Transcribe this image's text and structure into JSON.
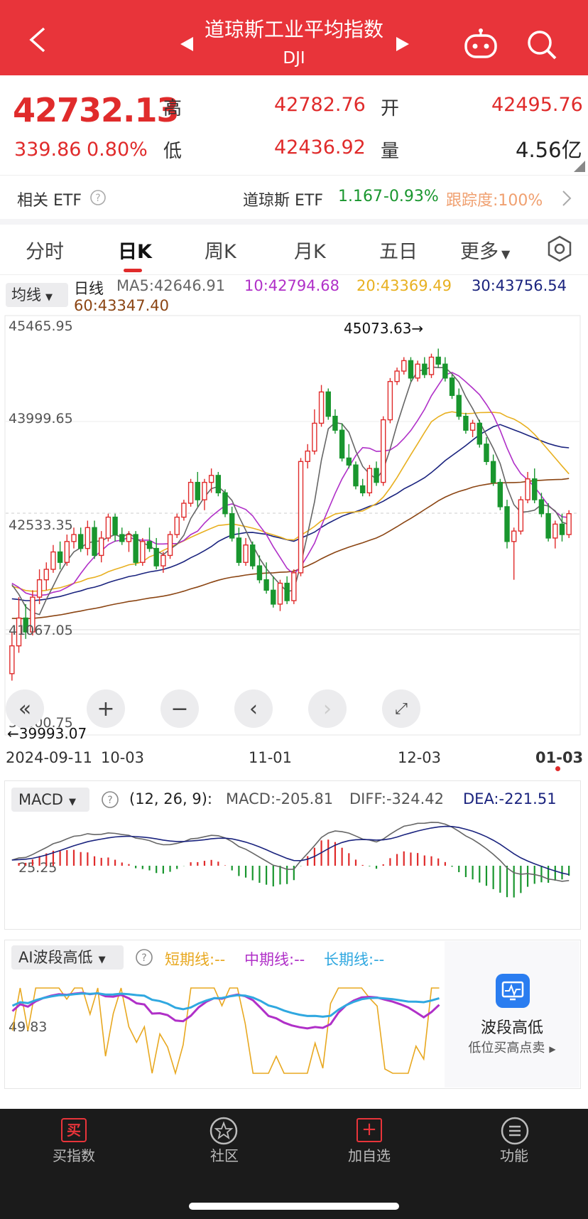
{
  "header": {
    "title": "道琼斯工业平均指数",
    "code": "DJI"
  },
  "quote": {
    "price": "42732.13",
    "change": "339.86",
    "change_pct": "0.80%",
    "high_label": "高",
    "high": "42782.76",
    "open_label": "开",
    "open": "42495.76",
    "low_label": "低",
    "low": "42436.92",
    "volume_label": "量",
    "volume": "4.56亿"
  },
  "etf": {
    "related_label": "相关 ETF",
    "name": "道琼斯 ETF",
    "price": "1.167",
    "change_pct": "-0.93%",
    "tracking": "跟踪度:100%"
  },
  "tabs": [
    "分时",
    "日K",
    "周K",
    "月K",
    "五日",
    "更多"
  ],
  "selected_tab": "日K",
  "ma_legend": {
    "selector": "均线",
    "kind": "日线",
    "ma5": "MA5:42646.91",
    "ma10": "10:42794.68",
    "ma20": "20:43369.49",
    "ma30": "30:43756.54",
    "ma60": "60:43347.40"
  },
  "colors": {
    "up": "#e02b2b",
    "down": "#19962e",
    "ma5": "#666666",
    "ma10": "#b030c8",
    "ma20": "#e8b020",
    "ma30": "#1a237e",
    "ma60": "#8b4513"
  },
  "chart_data": [
    {
      "type": "candlestick",
      "y_ticks": [
        "45465.95",
        "43999.65",
        "42533.35",
        "41067.05",
        "39600.75"
      ],
      "ylim": [
        39600.75,
        45465.95
      ],
      "x_ticks": [
        "2024-09-11",
        "10-03",
        "11-01",
        "12-03",
        "01-03"
      ],
      "annotations": {
        "max": "45073.63→",
        "min": "←39993.07"
      },
      "candles": [
        [
          40400,
          41000,
          40300,
          40800
        ],
        [
          40800,
          41500,
          40700,
          41200
        ],
        [
          41200,
          41400,
          40900,
          41000
        ],
        [
          41000,
          41600,
          40950,
          41500
        ],
        [
          41500,
          41900,
          41400,
          41750
        ],
        [
          41750,
          42000,
          41600,
          41900
        ],
        [
          41900,
          42250,
          41850,
          42150
        ],
        [
          42150,
          42300,
          41900,
          42000
        ],
        [
          42000,
          42400,
          41950,
          42300
        ],
        [
          42300,
          42500,
          42200,
          42400
        ],
        [
          42400,
          42500,
          42150,
          42200
        ],
        [
          42200,
          42600,
          42100,
          42500
        ],
        [
          42500,
          42600,
          42050,
          42100
        ],
        [
          42100,
          42450,
          42000,
          42350
        ],
        [
          42350,
          42700,
          42300,
          42650
        ],
        [
          42650,
          42700,
          42300,
          42400
        ],
        [
          42400,
          42500,
          42250,
          42300
        ],
        [
          42300,
          42450,
          42150,
          42400
        ],
        [
          42400,
          42450,
          41950,
          42000
        ],
        [
          42000,
          42350,
          41950,
          42300
        ],
        [
          42300,
          42500,
          42150,
          42200
        ],
        [
          42200,
          42350,
          41900,
          41950
        ],
        [
          41950,
          42150,
          41850,
          42100
        ],
        [
          42100,
          42450,
          42050,
          42400
        ],
        [
          42400,
          42700,
          42350,
          42650
        ],
        [
          42650,
          42900,
          42600,
          42850
        ],
        [
          42850,
          43200,
          42800,
          43150
        ],
        [
          43150,
          43300,
          42800,
          42900
        ],
        [
          42900,
          43200,
          42750,
          43150
        ],
        [
          43150,
          43350,
          43000,
          43250
        ],
        [
          43250,
          43300,
          42950,
          43000
        ],
        [
          43000,
          43050,
          42650,
          42700
        ],
        [
          42700,
          42800,
          42300,
          42350
        ],
        [
          42350,
          42500,
          41950,
          42000
        ],
        [
          42000,
          42350,
          41950,
          42250
        ],
        [
          42250,
          42300,
          41900,
          41950
        ],
        [
          41950,
          42100,
          41700,
          41750
        ],
        [
          41750,
          42000,
          41550,
          41600
        ],
        [
          41600,
          41800,
          41350,
          41400
        ],
        [
          41400,
          41750,
          41300,
          41700
        ],
        [
          41700,
          41800,
          41400,
          41450
        ],
        [
          41450,
          41900,
          41400,
          41850
        ],
        [
          41850,
          43500,
          41800,
          43450
        ],
        [
          43450,
          43700,
          43350,
          43600
        ],
        [
          43600,
          44200,
          43550,
          44000
        ],
        [
          44000,
          44550,
          43950,
          44450
        ],
        [
          44450,
          44500,
          44050,
          44100
        ],
        [
          44100,
          44200,
          43850,
          43900
        ],
        [
          43900,
          44000,
          43450,
          43500
        ],
        [
          43500,
          43700,
          43350,
          43400
        ],
        [
          43400,
          43450,
          43050,
          43100
        ],
        [
          43100,
          43200,
          42950,
          43000
        ],
        [
          43000,
          43400,
          42950,
          43350
        ],
        [
          43350,
          43450,
          43100,
          43150
        ],
        [
          43150,
          44100,
          43100,
          44050
        ],
        [
          44050,
          44650,
          44000,
          44600
        ],
        [
          44600,
          44800,
          44550,
          44750
        ],
        [
          44750,
          44950,
          44700,
          44900
        ],
        [
          44900,
          44950,
          44600,
          44650
        ],
        [
          44650,
          44900,
          44600,
          44850
        ],
        [
          44850,
          44950,
          44650,
          44700
        ],
        [
          44700,
          45000,
          44650,
          44950
        ],
        [
          44950,
          45073,
          44800,
          44850
        ],
        [
          44850,
          44950,
          44600,
          44650
        ],
        [
          44650,
          44700,
          44350,
          44400
        ],
        [
          44400,
          44500,
          44050,
          44100
        ],
        [
          44100,
          44150,
          43850,
          43900
        ],
        [
          43900,
          44050,
          43800,
          44000
        ],
        [
          44000,
          44050,
          43650,
          43700
        ],
        [
          43700,
          43800,
          43400,
          43450
        ],
        [
          43450,
          43550,
          43100,
          43150
        ],
        [
          43150,
          43200,
          42750,
          42800
        ],
        [
          42800,
          42900,
          42200,
          42300
        ],
        [
          42300,
          42500,
          41750,
          42450
        ],
        [
          42450,
          42950,
          42400,
          42900
        ],
        [
          42900,
          43300,
          42850,
          43200
        ],
        [
          43200,
          43350,
          42850,
          42900
        ],
        [
          42900,
          43000,
          42650,
          42700
        ],
        [
          42700,
          42850,
          42300,
          42350
        ],
        [
          42350,
          42600,
          42200,
          42550
        ],
        [
          42550,
          42700,
          42300,
          42400
        ],
        [
          42400,
          42750,
          42350,
          42700
        ]
      ]
    },
    {
      "type": "bar",
      "name": "MACD",
      "params": "(12, 26, 9):",
      "values_text": {
        "macd": "MACD:-205.81",
        "diff": "DIFF:-324.42",
        "dea": "DEA:-221.51"
      },
      "zero_label": "25.25"
    },
    {
      "type": "line",
      "name": "AI波段高低",
      "series_labels": [
        "短期线:--",
        "中期线:--",
        "长期线:--"
      ],
      "y_label": "49.83"
    }
  ],
  "ai_card": {
    "title": "波段高低",
    "subtitle": "低位买高点卖"
  },
  "nav": [
    "买指数",
    "社区",
    "加自选",
    "功能"
  ]
}
